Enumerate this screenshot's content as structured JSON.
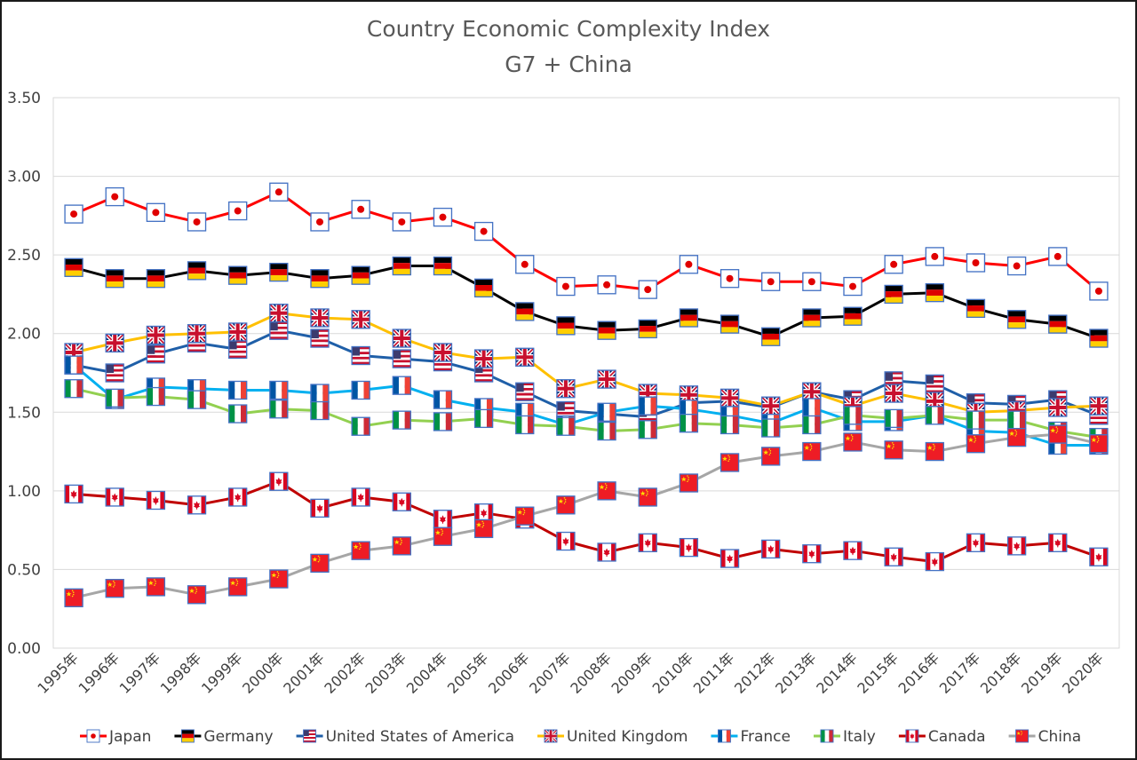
{
  "chart_data": {
    "type": "line",
    "title": "Country Economic Complexity Index",
    "subtitle": "G7 + China",
    "xlabel": "",
    "ylabel": "",
    "ylim": [
      0,
      3.5
    ],
    "ytick_labels": [
      "0.00",
      "0.50",
      "1.00",
      "1.50",
      "2.00",
      "2.50",
      "3.00",
      "3.50"
    ],
    "grid": true,
    "legend_position": "bottom",
    "categories": [
      "1995年",
      "1996年",
      "1997年",
      "1998年",
      "1999年",
      "2000年",
      "2001年",
      "2002年",
      "2003年",
      "2004年",
      "2005年",
      "2006年",
      "2007年",
      "2008年",
      "2009年",
      "2010年",
      "2011年",
      "2012年",
      "2013年",
      "2014年",
      "2015年",
      "2016年",
      "2017年",
      "2018年",
      "2019年",
      "2020年"
    ],
    "series": [
      {
        "name": "Japan",
        "color": "#ff0000",
        "marker": "japan-flag",
        "values": [
          2.76,
          2.87,
          2.77,
          2.71,
          2.78,
          2.9,
          2.71,
          2.79,
          2.71,
          2.74,
          2.65,
          2.44,
          2.3,
          2.31,
          2.28,
          2.44,
          2.35,
          2.33,
          2.33,
          2.3,
          2.44,
          2.49,
          2.45,
          2.43,
          2.49,
          2.27
        ]
      },
      {
        "name": "Germany",
        "color": "#000000",
        "marker": "germany-flag",
        "values": [
          2.42,
          2.35,
          2.35,
          2.4,
          2.37,
          2.39,
          2.35,
          2.37,
          2.43,
          2.43,
          2.29,
          2.14,
          2.05,
          2.02,
          2.03,
          2.1,
          2.06,
          1.98,
          2.1,
          2.11,
          2.25,
          2.26,
          2.16,
          2.09,
          2.06,
          1.97
        ]
      },
      {
        "name": "United States of America",
        "color": "#1f5fa8",
        "marker": "usa-flag",
        "values": [
          1.8,
          1.75,
          1.87,
          1.94,
          1.9,
          2.02,
          1.97,
          1.86,
          1.84,
          1.82,
          1.75,
          1.63,
          1.51,
          1.49,
          1.47,
          1.56,
          1.57,
          1.53,
          1.63,
          1.58,
          1.7,
          1.68,
          1.56,
          1.55,
          1.58,
          1.48
        ]
      },
      {
        "name": "United Kingdom",
        "color": "#ffc000",
        "marker": "uk-flag",
        "values": [
          1.88,
          1.94,
          1.99,
          2.0,
          2.01,
          2.13,
          2.1,
          2.09,
          1.97,
          1.88,
          1.84,
          1.85,
          1.65,
          1.71,
          1.62,
          1.61,
          1.59,
          1.54,
          1.63,
          1.54,
          1.62,
          1.57,
          1.5,
          1.51,
          1.53,
          1.54
        ]
      },
      {
        "name": "France",
        "color": "#00b0f0",
        "marker": "france-flag",
        "values": [
          1.8,
          1.58,
          1.66,
          1.65,
          1.64,
          1.64,
          1.62,
          1.64,
          1.67,
          1.58,
          1.53,
          1.5,
          1.42,
          1.5,
          1.54,
          1.52,
          1.48,
          1.43,
          1.53,
          1.44,
          1.44,
          1.48,
          1.38,
          1.37,
          1.29,
          1.29
        ]
      },
      {
        "name": "Italy",
        "color": "#92d050",
        "marker": "italy-flag",
        "values": [
          1.65,
          1.59,
          1.6,
          1.58,
          1.49,
          1.52,
          1.51,
          1.41,
          1.45,
          1.44,
          1.46,
          1.42,
          1.41,
          1.38,
          1.39,
          1.43,
          1.42,
          1.4,
          1.42,
          1.48,
          1.46,
          1.48,
          1.45,
          1.45,
          1.38,
          1.34
        ]
      },
      {
        "name": "Canada",
        "color": "#c00000",
        "marker": "canada-flag",
        "values": [
          0.98,
          0.96,
          0.94,
          0.91,
          0.96,
          1.06,
          0.89,
          0.96,
          0.93,
          0.82,
          0.86,
          0.82,
          0.68,
          0.61,
          0.67,
          0.64,
          0.57,
          0.63,
          0.6,
          0.62,
          0.58,
          0.55,
          0.67,
          0.65,
          0.67,
          0.58
        ]
      },
      {
        "name": "China",
        "color": "#a6a6a6",
        "marker": "china-flag",
        "values": [
          0.32,
          0.38,
          0.39,
          0.34,
          0.39,
          0.44,
          0.54,
          0.62,
          0.65,
          0.71,
          0.76,
          0.84,
          0.91,
          1.0,
          0.96,
          1.05,
          1.18,
          1.22,
          1.25,
          1.31,
          1.26,
          1.25,
          1.3,
          1.34,
          1.36,
          1.3
        ]
      }
    ]
  }
}
